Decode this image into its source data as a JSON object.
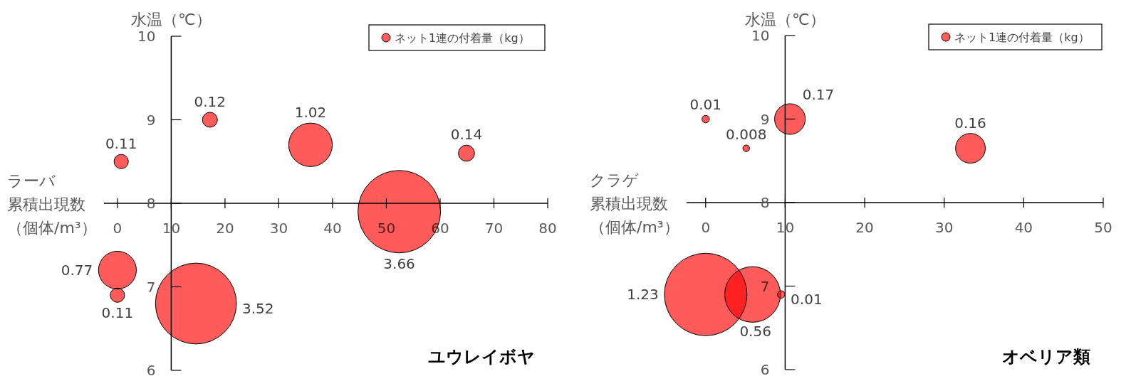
{
  "chart_data": [
    {
      "type": "bubble",
      "title": "ユウレイボヤ",
      "xlabel": "ラーバ累積出現数（個体/m³）",
      "ylabel": "水温（℃）",
      "x": [
        0.7,
        17.2,
        35.9,
        64.9,
        52.4,
        0,
        0,
        14.6
      ],
      "series": [
        {
          "name": "ネット1連の付着量（kg）",
          "color": "#ff5b5b",
          "values": [
            8.5,
            9.0,
            8.7,
            8.6,
            7.9,
            7.2,
            6.9,
            6.8
          ],
          "sizes": [
            0.11,
            0.12,
            1.02,
            0.14,
            3.66,
            0.77,
            0.11,
            3.52
          ],
          "value_labels": [
            "0.11",
            "0.12",
            "1.02",
            "0.14",
            "3.66",
            "0.77",
            "0.11",
            "3.52"
          ]
        }
      ],
      "xlim": [
        -2.5,
        80
      ],
      "ylim": [
        6,
        10
      ],
      "xticks": [
        0,
        10,
        20,
        30,
        40,
        50,
        60,
        70,
        80
      ],
      "yticks": [
        6,
        7,
        8,
        9,
        10
      ],
      "legend": "top right"
    },
    {
      "type": "bubble",
      "title": "オベリア類",
      "xlabel": "クラゲ累積出現数（個体/m³）",
      "ylabel": "水温（℃）",
      "x": [
        0,
        5.1,
        10.6,
        33.3,
        0,
        5.9,
        9.5
      ],
      "series": [
        {
          "name": "ネット1連の付着量（kg）",
          "color": "#ff5b5b",
          "values": [
            9.0,
            8.65,
            9.0,
            8.65,
            6.9,
            6.9,
            6.9
          ],
          "sizes": [
            0.01,
            0.008,
            0.17,
            0.16,
            1.23,
            0.56,
            0.01
          ],
          "value_labels": [
            "0.01",
            "0.008",
            "0.17",
            "0.16",
            "1.23",
            "0.56",
            "0.01"
          ]
        }
      ],
      "xlim": [
        -2.4,
        50
      ],
      "ylim": [
        6,
        10
      ],
      "xticks": [
        0,
        10,
        20,
        30,
        40,
        50
      ],
      "yticks": [
        6,
        7,
        8,
        9,
        10
      ],
      "legend": "top right"
    }
  ]
}
